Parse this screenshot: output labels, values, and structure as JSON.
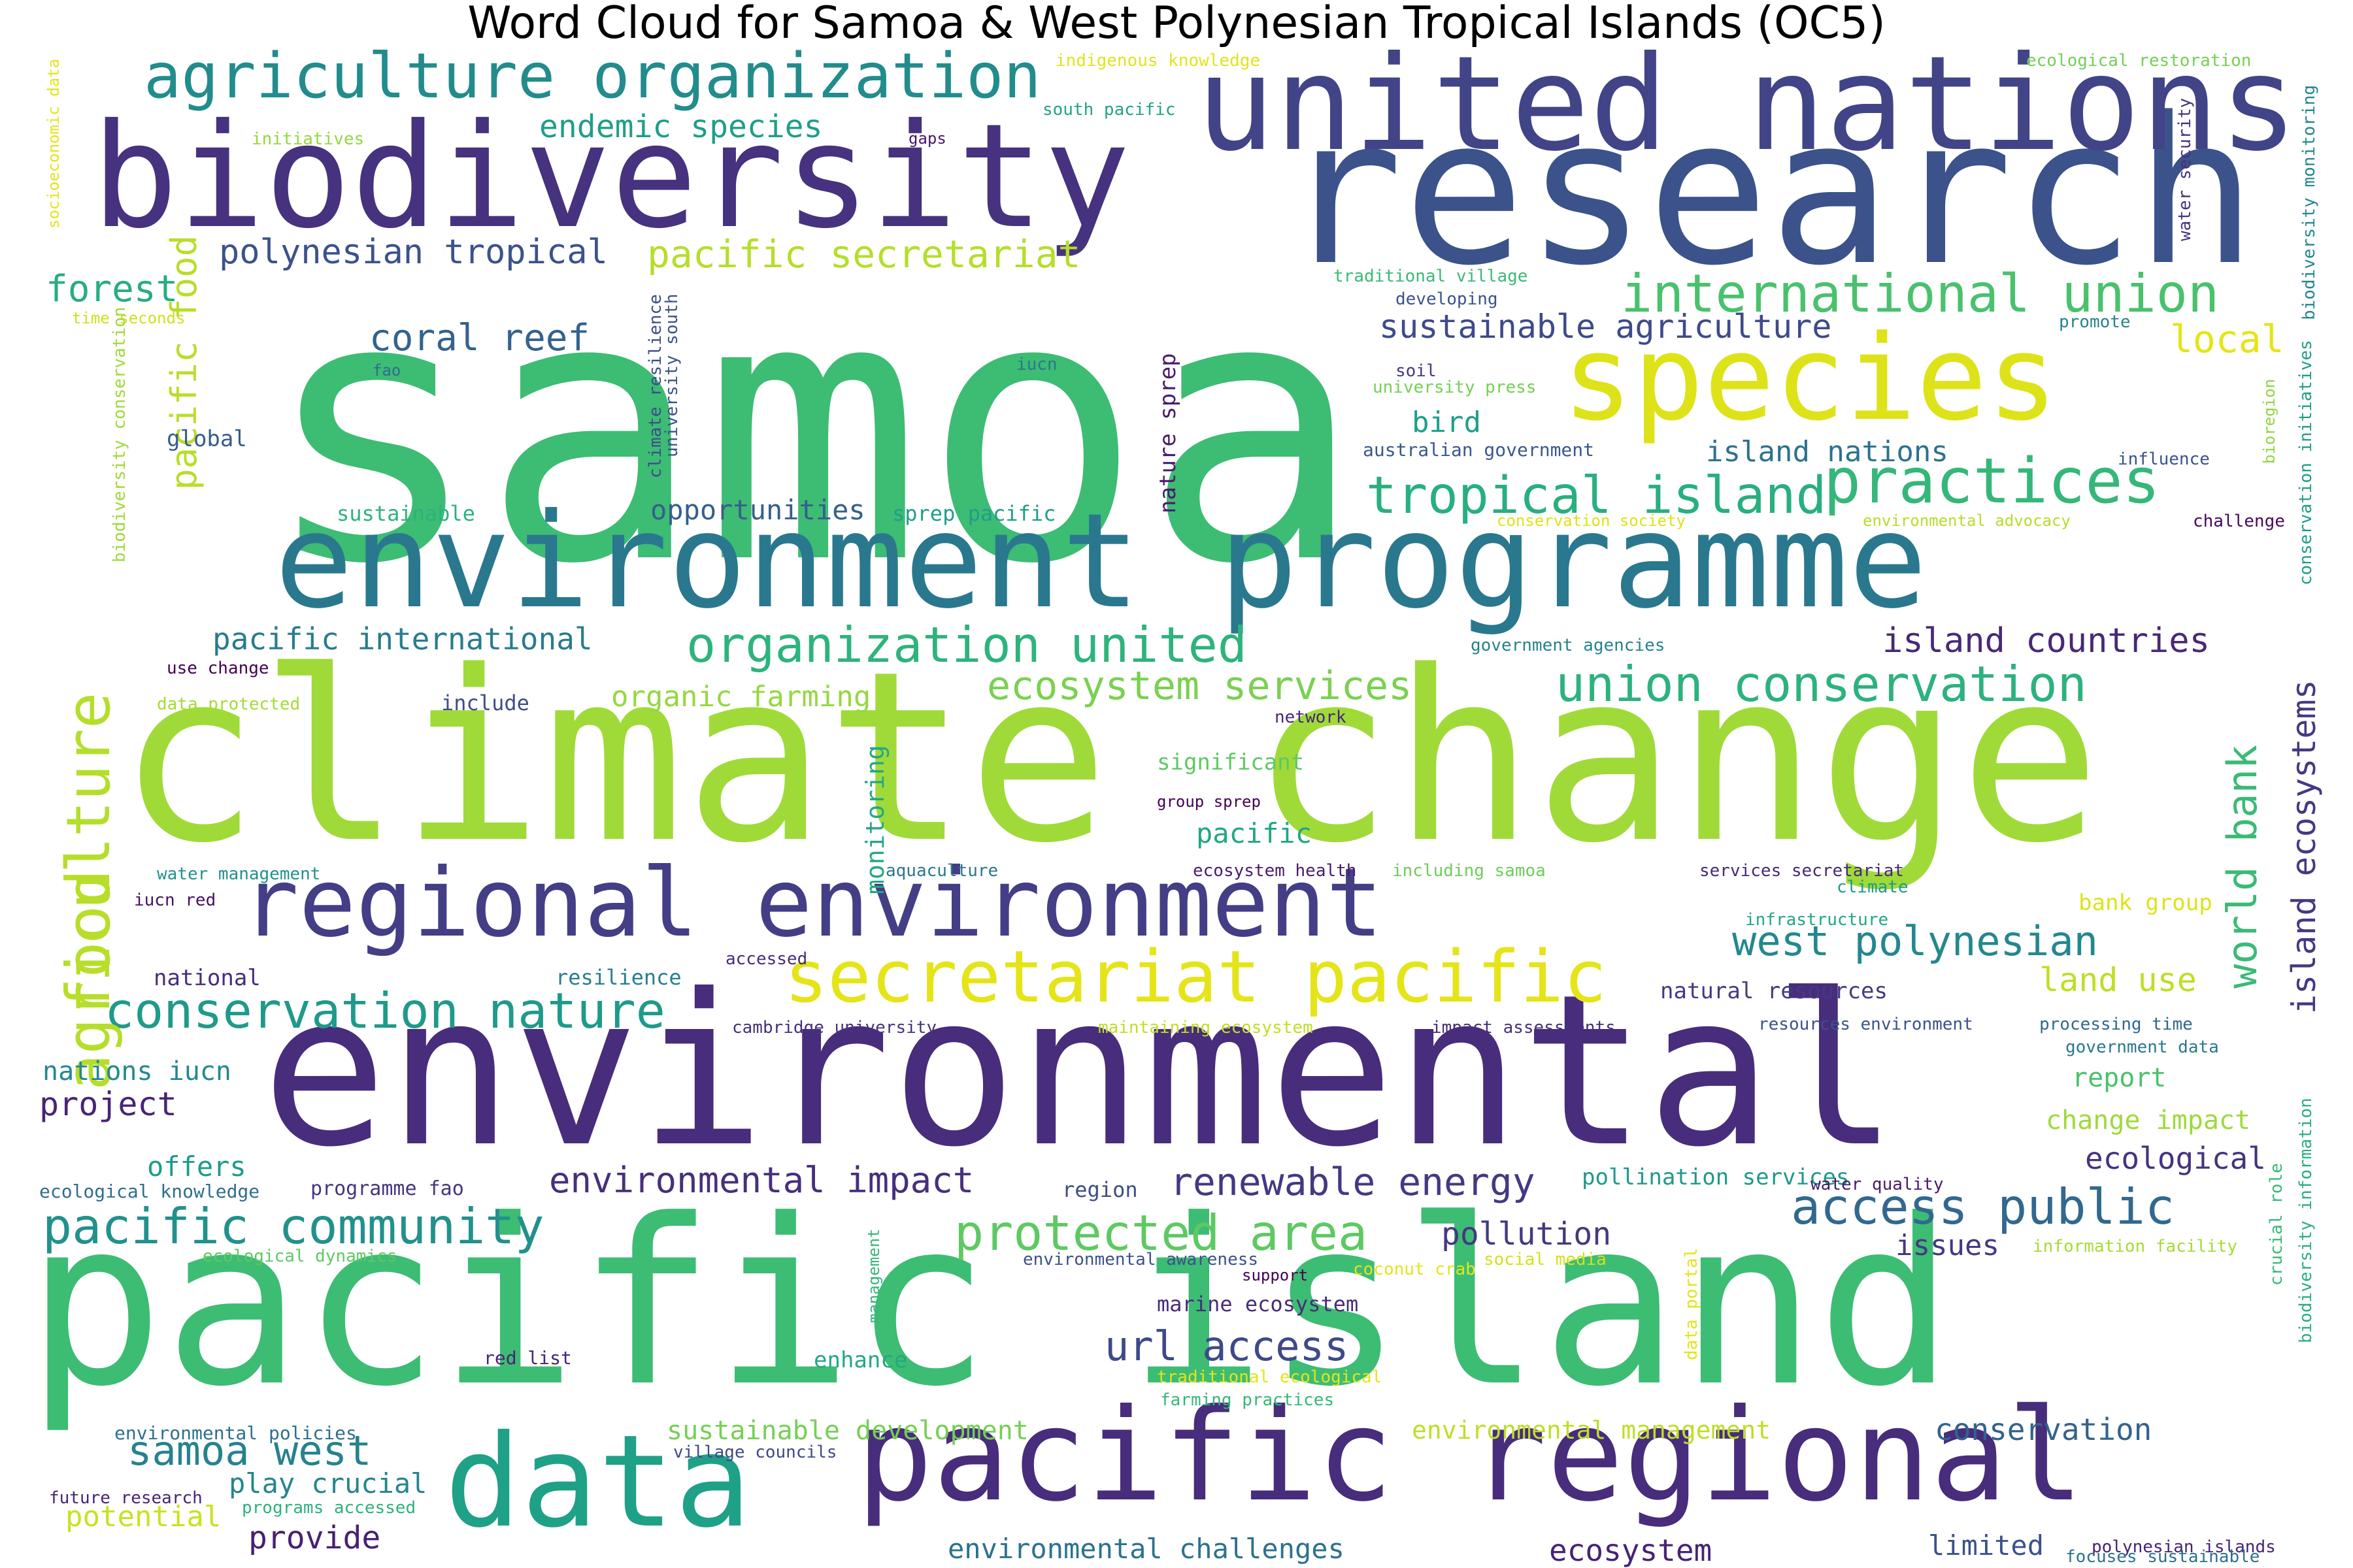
{
  "title": "Word Cloud for Samoa & West Polynesian Tropical Islands (OC5)",
  "palette": "viridis",
  "words": [
    {
      "text": "samoa",
      "color": "#3dbc74"
    },
    {
      "text": "research",
      "color": "#3b528b"
    },
    {
      "text": "climate change",
      "color": "#a0da39"
    },
    {
      "text": "environmental",
      "color": "#472d7b"
    },
    {
      "text": "pacific island",
      "color": "#3dbc74"
    },
    {
      "text": "biodiversity",
      "color": "#46327e"
    },
    {
      "text": "united nations",
      "color": "#414487"
    },
    {
      "text": "environment programme",
      "color": "#2a788e"
    },
    {
      "text": "species",
      "color": "#dde318"
    },
    {
      "text": "regional environment",
      "color": "#433e85"
    },
    {
      "text": "pacific regional",
      "color": "#472d7b"
    },
    {
      "text": "data",
      "color": "#1fa187"
    },
    {
      "text": "secretariat pacific",
      "color": "#e5e419"
    },
    {
      "text": "agriculture organization",
      "color": "#228c8d"
    },
    {
      "text": "practices",
      "color": "#35b779"
    },
    {
      "text": "international union",
      "color": "#4ac16d"
    },
    {
      "text": "tropical island",
      "color": "#29af7f"
    },
    {
      "text": "organization united",
      "color": "#2eb37c"
    },
    {
      "text": "union conservation",
      "color": "#2db27d"
    },
    {
      "text": "conservation nature",
      "color": "#1f9a8a"
    },
    {
      "text": "pacific community",
      "color": "#21918c"
    },
    {
      "text": "protected area",
      "color": "#5ec962"
    },
    {
      "text": "access public",
      "color": "#31688e"
    },
    {
      "text": "west polynesian",
      "color": "#23888e"
    },
    {
      "text": "world bank",
      "color": "#3aba76"
    },
    {
      "text": "island ecosystems",
      "color": "#443983"
    },
    {
      "text": "agriculture",
      "color": "#b5de2b"
    },
    {
      "text": "food",
      "color": "#b8de29"
    },
    {
      "text": "pacific food",
      "color": "#b8de29"
    },
    {
      "text": "ecosystem services",
      "color": "#7ad151"
    },
    {
      "text": "samoa west",
      "color": "#26828e"
    },
    {
      "text": "url access",
      "color": "#3e4989"
    },
    {
      "text": "renewable energy",
      "color": "#453882"
    },
    {
      "text": "environmental impact",
      "color": "#472f7d"
    },
    {
      "text": "pacific secretariat",
      "color": "#b5de2b"
    },
    {
      "text": "polynesian tropical",
      "color": "#3b528b"
    },
    {
      "text": "endemic species",
      "color": "#1f9e89"
    },
    {
      "text": "coral reef",
      "color": "#33638d"
    },
    {
      "text": "forest",
      "color": "#27ad81"
    },
    {
      "text": "sustainable agriculture",
      "color": "#3e4a89"
    },
    {
      "text": "island countries",
      "color": "#482878"
    },
    {
      "text": "island nations",
      "color": "#2c728e"
    },
    {
      "text": "local",
      "color": "#e5e419"
    },
    {
      "text": "bird",
      "color": "#1fa088"
    },
    {
      "text": "organic farming",
      "color": "#95d840"
    },
    {
      "text": "pacific international",
      "color": "#287c8e"
    },
    {
      "text": "opportunities",
      "color": "#355f8d"
    },
    {
      "text": "pollution",
      "color": "#443983"
    },
    {
      "text": "ecological",
      "color": "#46337e"
    },
    {
      "text": "land use",
      "color": "#bddf26"
    },
    {
      "text": "natural resources",
      "color": "#443a83"
    },
    {
      "text": "project",
      "color": "#482475"
    },
    {
      "text": "nations iucn",
      "color": "#23898e"
    },
    {
      "text": "provide",
      "color": "#482071"
    },
    {
      "text": "potential",
      "color": "#cae11f"
    },
    {
      "text": "play crucial",
      "color": "#24868e"
    },
    {
      "text": "ecosystem",
      "color": "#482374"
    },
    {
      "text": "limited",
      "color": "#3b528b"
    },
    {
      "text": "issues",
      "color": "#453882"
    },
    {
      "text": "conservation",
      "color": "#33638d"
    },
    {
      "text": "sustainable development",
      "color": "#75d054"
    },
    {
      "text": "environmental management",
      "color": "#bddf26"
    },
    {
      "text": "environmental challenges",
      "color": "#2c728e"
    },
    {
      "text": "pollination services",
      "color": "#1f998a"
    },
    {
      "text": "monitoring",
      "color": "#22a884"
    },
    {
      "text": "pacific",
      "color": "#22a785"
    },
    {
      "text": "significant",
      "color": "#5ec962"
    },
    {
      "text": "marine ecosystem",
      "color": "#472c7a"
    },
    {
      "text": "enhance",
      "color": "#22a884"
    },
    {
      "text": "report",
      "color": "#4ac16d"
    },
    {
      "text": "change impact",
      "color": "#9fda3a"
    },
    {
      "text": "bank group",
      "color": "#dde318"
    },
    {
      "text": "offers",
      "color": "#1e9b8a"
    },
    {
      "text": "global",
      "color": "#365c8d"
    },
    {
      "text": "sustainable",
      "color": "#2db27d"
    },
    {
      "text": "sprep pacific",
      "color": "#1f9e89"
    },
    {
      "text": "nature sprep",
      "color": "#481c6e"
    },
    {
      "text": "include",
      "color": "#3e4c8a"
    },
    {
      "text": "national",
      "color": "#472d7b"
    },
    {
      "text": "resilience",
      "color": "#277f8e"
    },
    {
      "text": "region",
      "color": "#3e4c8a"
    },
    {
      "text": "programme fao",
      "color": "#463480"
    },
    {
      "text": "ecological knowledge",
      "color": "#2e6e8e"
    },
    {
      "text": "indigenous knowledge",
      "color": "#e2e418"
    },
    {
      "text": "south pacific",
      "color": "#20a486"
    },
    {
      "text": "gaps",
      "color": "#481769"
    },
    {
      "text": "initiatives",
      "color": "#95d840"
    },
    {
      "text": "ecological restoration",
      "color": "#73d056"
    },
    {
      "text": "socioeconomic data",
      "color": "#e5e419"
    },
    {
      "text": "time seconds",
      "color": "#d0e11c"
    },
    {
      "text": "fao",
      "color": "#2f6c8e"
    },
    {
      "text": "traditional village",
      "color": "#3aba76"
    },
    {
      "text": "developing",
      "color": "#3b528b"
    },
    {
      "text": "iucn",
      "color": "#2a788e"
    },
    {
      "text": "soil",
      "color": "#453882"
    },
    {
      "text": "university press",
      "color": "#75d054"
    },
    {
      "text": "australian government",
      "color": "#38588c"
    },
    {
      "text": "influence",
      "color": "#3b528b"
    },
    {
      "text": "promote",
      "color": "#26828e"
    },
    {
      "text": "conservation society",
      "color": "#dde318"
    },
    {
      "text": "environmental advocacy",
      "color": "#b5de2b"
    },
    {
      "text": "challenge",
      "color": "#46085c"
    },
    {
      "text": "government agencies",
      "color": "#26828e"
    },
    {
      "text": "use change",
      "color": "#440154"
    },
    {
      "text": "data protected",
      "color": "#a5db36"
    },
    {
      "text": "network",
      "color": "#482677"
    },
    {
      "text": "water management",
      "color": "#21918c"
    },
    {
      "text": "iucn red",
      "color": "#471063"
    },
    {
      "text": "aquaculture",
      "color": "#2a788e"
    },
    {
      "text": "ecosystem health",
      "color": "#481b6d"
    },
    {
      "text": "including samoa",
      "color": "#6ece58"
    },
    {
      "text": "group sprep",
      "color": "#440154"
    },
    {
      "text": "services secretariat",
      "color": "#482878"
    },
    {
      "text": "climate",
      "color": "#1f9a8a"
    },
    {
      "text": "infrastructure",
      "color": "#22a785"
    },
    {
      "text": "accessed",
      "color": "#472c7a"
    },
    {
      "text": "cambridge university",
      "color": "#46327e"
    },
    {
      "text": "maintaining ecosystem",
      "color": "#c0df25"
    },
    {
      "text": "impact assessments",
      "color": "#472f7d"
    },
    {
      "text": "resources environment",
      "color": "#3b528b"
    },
    {
      "text": "processing time",
      "color": "#31688e"
    },
    {
      "text": "government data",
      "color": "#2a788e"
    },
    {
      "text": "water quality",
      "color": "#481b6d"
    },
    {
      "text": "ecological dynamics",
      "color": "#5ec962"
    },
    {
      "text": "environmental awareness",
      "color": "#3b528b"
    },
    {
      "text": "support",
      "color": "#440154"
    },
    {
      "text": "coconut crab",
      "color": "#e5e419"
    },
    {
      "text": "social media",
      "color": "#d2e21b"
    },
    {
      "text": "information facility",
      "color": "#a8db34"
    },
    {
      "text": "red list",
      "color": "#482475"
    },
    {
      "text": "traditional ecological",
      "color": "#e5e419"
    },
    {
      "text": "farming practices",
      "color": "#35b779"
    },
    {
      "text": "environmental policies",
      "color": "#2d708e"
    },
    {
      "text": "village councils",
      "color": "#3e4989"
    },
    {
      "text": "future research",
      "color": "#482475"
    },
    {
      "text": "programs accessed",
      "color": "#2db27d"
    },
    {
      "text": "polynesian islands",
      "color": "#482374"
    },
    {
      "text": "focuses sustainable",
      "color": "#2c728e"
    },
    {
      "text": "water security",
      "color": "#46327e"
    },
    {
      "text": "biodiversity monitoring",
      "color": "#23888e"
    },
    {
      "text": "bioregion",
      "color": "#8fd744"
    },
    {
      "text": "conservation initiatives",
      "color": "#1f9e89"
    },
    {
      "text": "biodiversity information",
      "color": "#29af7f"
    },
    {
      "text": "crucial role",
      "color": "#3aba76"
    },
    {
      "text": "biodiversity conservation",
      "color": "#a0da39"
    },
    {
      "text": "university south",
      "color": "#3b528b"
    },
    {
      "text": "climate resilience",
      "color": "#3e4c8a"
    },
    {
      "text": "management",
      "color": "#35b779"
    },
    {
      "text": "data portal",
      "color": "#e5e419"
    }
  ]
}
